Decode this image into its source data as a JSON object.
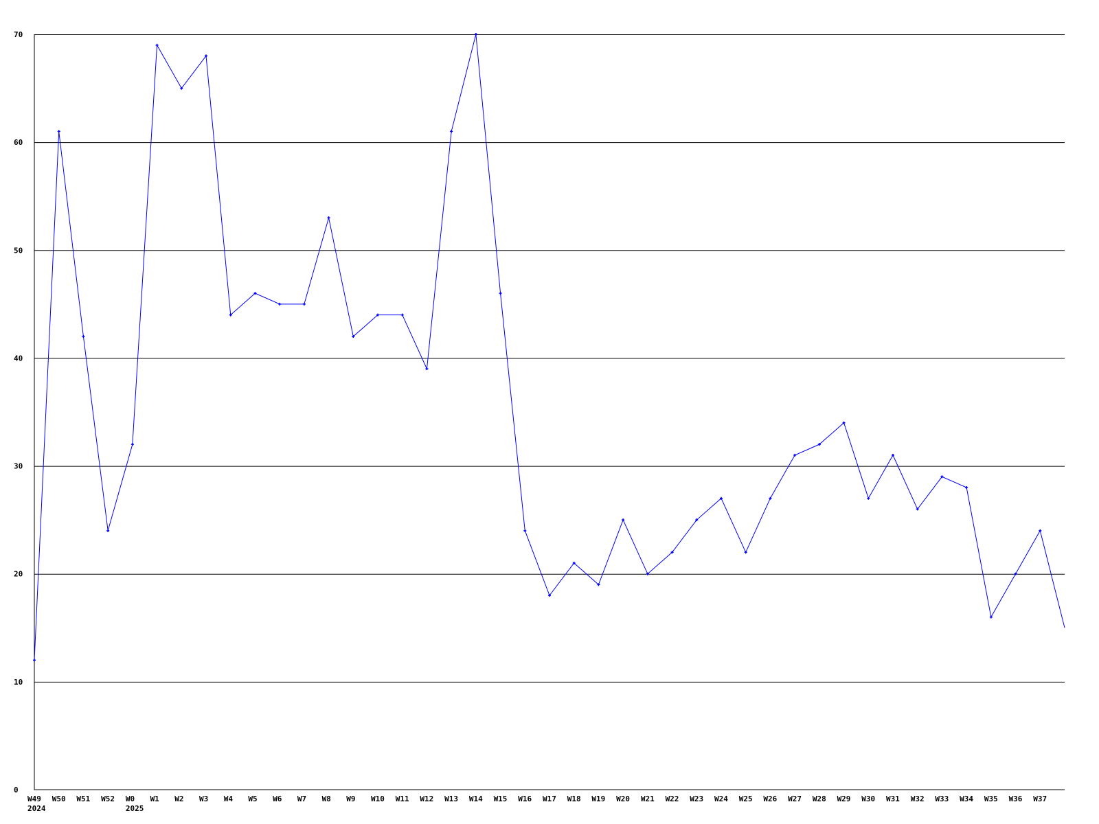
{
  "chart_data": {
    "type": "line",
    "title": "",
    "xlabel": "",
    "ylabel": "",
    "ylim": [
      0,
      70
    ],
    "yticks": [
      0,
      10,
      20,
      30,
      40,
      50,
      60,
      70
    ],
    "grid": "horizontal",
    "line_color": "#0000ff",
    "categories": [
      "W49",
      "W50",
      "W51",
      "W52",
      "W0",
      "W1",
      "W2",
      "W3",
      "W4",
      "W5",
      "W6",
      "W7",
      "W8",
      "W9",
      "W10",
      "W11",
      "W12",
      "W13",
      "W14",
      "W15",
      "W16",
      "W17",
      "W18",
      "W19",
      "W20",
      "W21",
      "W22",
      "W23",
      "W24",
      "W25",
      "W26",
      "W27",
      "W28",
      "W29",
      "W30",
      "W31",
      "W32",
      "W33",
      "W34",
      "W35",
      "W36",
      "W37",
      ""
    ],
    "year_labels": [
      {
        "index": 0,
        "label": "2024"
      },
      {
        "index": 4,
        "label": "2025"
      }
    ],
    "values": [
      12,
      61,
      42,
      24,
      32,
      69,
      65,
      68,
      44,
      46,
      45,
      45,
      53,
      42,
      44,
      44,
      39,
      61,
      70,
      46,
      24,
      18,
      21,
      19,
      25,
      20,
      22,
      25,
      27,
      22,
      27,
      31,
      32,
      34,
      27,
      31,
      26,
      29,
      28,
      16,
      20,
      24,
      15
    ]
  }
}
